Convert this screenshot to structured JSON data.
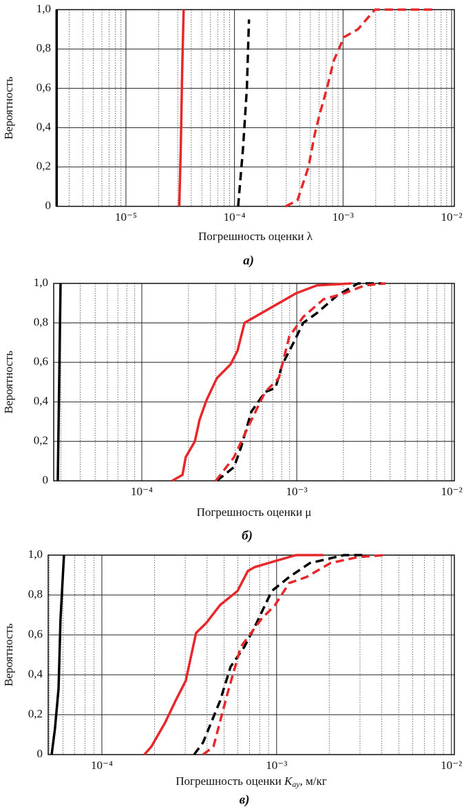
{
  "chart_data": [
    {
      "type": "line",
      "log_x": true,
      "grid": true,
      "minor_grid": true,
      "ylabel": "Вероятность",
      "xlabel": "Погрешность оценки λ",
      "caption": "а)",
      "xlim": [
        2.29e-06,
        0.0106
      ],
      "ylim": [
        0,
        1
      ],
      "xticks": [
        {
          "value": 1e-05,
          "label": "10⁻⁵"
        },
        {
          "value": 0.0001,
          "label": "10⁻⁴"
        },
        {
          "value": 0.001,
          "label": "10⁻³"
        },
        {
          "value": 0.01,
          "label": "10⁻²"
        }
      ],
      "yticks": [
        0,
        {
          "value": 0.2,
          "label": "0,2"
        },
        {
          "value": 0.4,
          "label": "0,4"
        },
        {
          "value": 0.6,
          "label": "0,6"
        },
        {
          "value": 0.8,
          "label": "0,8"
        },
        {
          "value": 1,
          "label": "1,0"
        }
      ],
      "series": [
        {
          "color": "#000000",
          "dashed": false,
          "x": [
            2.3e-06,
            2.3e-06
          ],
          "values": [
            0,
            1
          ]
        },
        {
          "color": "#e8272a",
          "dashed": false,
          "x": [
            3.1e-05,
            3.2e-05,
            3.3e-05,
            3.4e-05
          ],
          "values": [
            0,
            0.3,
            0.7,
            1
          ]
        },
        {
          "color": "#000000",
          "dashed": true,
          "x": [
            0.000108,
            0.00012,
            0.00013,
            0.000136
          ],
          "values": [
            0,
            0.3,
            0.6,
            0.95
          ]
        },
        {
          "color": "#e8272a",
          "dashed": true,
          "x": [
            0.000295,
            0.00038,
            0.00048,
            0.00055,
            0.00061,
            0.00071,
            0.00082,
            0.00102,
            0.00137,
            0.0017,
            0.00197,
            0.0068
          ],
          "values": [
            0,
            0.03,
            0.2,
            0.37,
            0.47,
            0.6,
            0.74,
            0.86,
            0.9,
            0.96,
            1,
            1
          ]
        }
      ]
    },
    {
      "type": "line",
      "log_x": true,
      "grid": true,
      "minor_grid": true,
      "ylabel": "Вероятность",
      "xlabel": "Погрешность оценки μ",
      "caption": "б)",
      "xlim": [
        2.7e-05,
        0.0104
      ],
      "ylim": [
        0,
        1
      ],
      "xticks": [
        {
          "value": 0.0001,
          "label": "10⁻⁴"
        },
        {
          "value": 0.001,
          "label": "10⁻³"
        },
        {
          "value": 0.01,
          "label": "10⁻²"
        }
      ],
      "yticks": [
        0,
        {
          "value": 0.2,
          "label": "0,2"
        },
        {
          "value": 0.4,
          "label": "0,4"
        },
        {
          "value": 0.6,
          "label": "0,6"
        },
        {
          "value": 0.8,
          "label": "0,8"
        },
        {
          "value": 1,
          "label": "1,0"
        }
      ],
      "series": [
        {
          "color": "#000000",
          "dashed": false,
          "x": [
            2.87e-05,
            2.99e-05
          ],
          "values": [
            0,
            1
          ]
        },
        {
          "color": "#e8272a",
          "dashed": false,
          "x": [
            0.000157,
            0.000183,
            0.000192,
            0.00022,
            0.000236,
            0.000262,
            0.000305,
            0.000374,
            0.000415,
            0.00046,
            0.000593,
            0.000728,
            0.00099,
            0.00135,
            0.00225
          ],
          "values": [
            0,
            0.03,
            0.12,
            0.2,
            0.31,
            0.41,
            0.52,
            0.59,
            0.66,
            0.8,
            0.85,
            0.89,
            0.95,
            0.99,
            1
          ]
        },
        {
          "color": "#000000",
          "dashed": true,
          "x": [
            0.000305,
            0.000394,
            0.000437,
            0.000509,
            0.000625,
            0.000728,
            0.000807,
            0.00094,
            0.0011,
            0.00135,
            0.00183,
            0.00249,
            0.00356
          ],
          "values": [
            0,
            0.07,
            0.17,
            0.35,
            0.45,
            0.47,
            0.59,
            0.69,
            0.8,
            0.85,
            0.94,
            1,
            1
          ]
        },
        {
          "color": "#e8272a",
          "dashed": true,
          "x": [
            0.0003,
            0.000394,
            0.000483,
            0.000625,
            0.000766,
            0.000894,
            0.0011,
            0.00149,
            0.00203,
            0.00275,
            0.00374
          ],
          "values": [
            0,
            0.12,
            0.27,
            0.45,
            0.52,
            0.73,
            0.83,
            0.92,
            0.95,
            0.99,
            1
          ]
        }
      ]
    },
    {
      "type": "line",
      "log_x": true,
      "grid": true,
      "minor_grid": true,
      "ylabel": "Вероятность",
      "xlabel": [
        "Погрешность оценки ",
        "K",
        "ау",
        ", м/кг"
      ],
      "caption": "в)",
      "xlim": [
        4.93e-05,
        0.0104
      ],
      "ylim": [
        0,
        1
      ],
      "xticks": [
        {
          "value": 0.0001,
          "label": "10⁻⁴"
        },
        {
          "value": 0.001,
          "label": "10⁻³"
        },
        {
          "value": 0.01,
          "label": "10⁻²"
        }
      ],
      "yticks": [
        0,
        {
          "value": 0.2,
          "label": "0,2"
        },
        {
          "value": 0.4,
          "label": "0,4"
        },
        {
          "value": 0.6,
          "label": "0,6"
        },
        {
          "value": 0.8,
          "label": "0,8"
        },
        {
          "value": 1,
          "label": "1,0"
        }
      ],
      "series": [
        {
          "color": "#000000",
          "dashed": false,
          "x": [
            5.16e-05,
            5.39e-05,
            5.65e-05,
            5.8e-05,
            6.07e-05
          ],
          "values": [
            0,
            0.13,
            0.33,
            0.68,
            1
          ]
        },
        {
          "color": "#e8272a",
          "dashed": false,
          "x": [
            0.000175,
            0.000192,
            0.00023,
            0.000264,
            0.000302,
            0.000346,
            0.000396,
            0.000475,
            0.000597,
            0.000684,
            0.000749,
            0.00098,
            0.00129,
            0.00185
          ],
          "values": [
            0,
            0.04,
            0.16,
            0.27,
            0.37,
            0.61,
            0.66,
            0.75,
            0.82,
            0.92,
            0.94,
            0.97,
            1,
            1
          ]
        },
        {
          "color": "#000000",
          "dashed": true,
          "x": [
            0.000337,
            0.000379,
            0.000475,
            0.000545,
            0.000653,
            0.000749,
            0.000938,
            0.00118,
            0.00155,
            0.00243,
            0.00319
          ],
          "values": [
            0,
            0.06,
            0.27,
            0.44,
            0.54,
            0.64,
            0.82,
            0.89,
            0.96,
            1,
            1
          ]
        },
        {
          "color": "#e8272a",
          "dashed": true,
          "x": [
            0.000379,
            0.000435,
            0.000521,
            0.000624,
            0.000819,
            0.00098,
            0.00118,
            0.00148,
            0.00203,
            0.00292,
            0.00419
          ],
          "values": [
            0,
            0.04,
            0.3,
            0.54,
            0.68,
            0.75,
            0.86,
            0.89,
            0.96,
            0.99,
            1
          ]
        }
      ]
    }
  ]
}
